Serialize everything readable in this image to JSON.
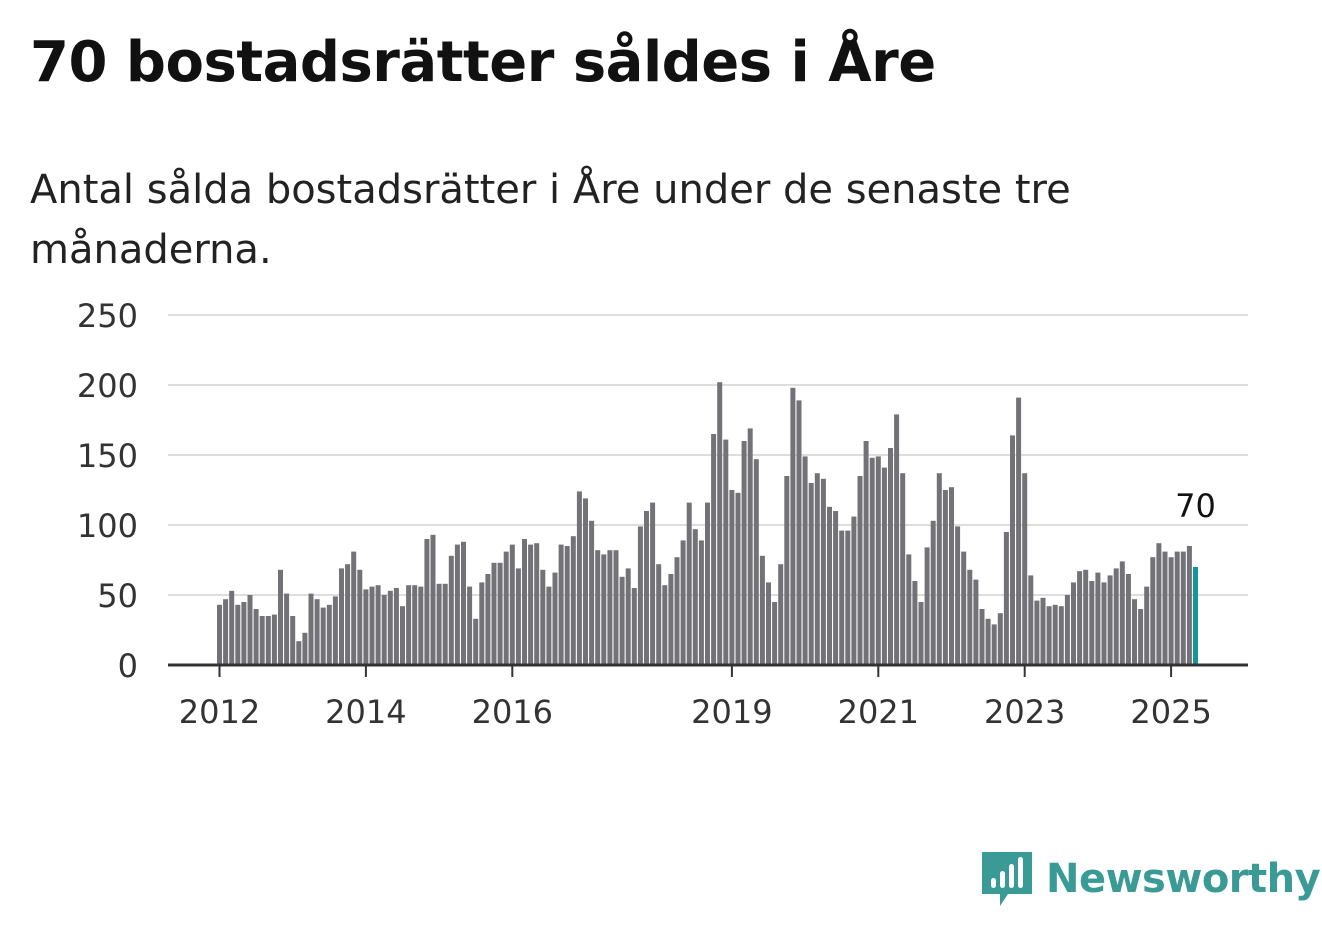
{
  "header": {
    "title": "70 bostadsrätter såldes i Åre",
    "subtitle": "Antal sålda bostadsrätter i Åre under de senaste tre månaderna."
  },
  "brand": {
    "name": "Newsworthy",
    "color": "#3a9a96"
  },
  "colors": {
    "bar": "#737277",
    "highlight": "#12959b",
    "grid": "#dddddd",
    "axis": "#333333"
  },
  "chart_data": {
    "type": "bar",
    "title": "",
    "xlabel": "",
    "ylabel": "",
    "ylim": [
      0,
      250
    ],
    "yticks": [
      0,
      50,
      100,
      150,
      200,
      250
    ],
    "xtick_labels": [
      "2012",
      "2014",
      "2016",
      "2019",
      "2021",
      "2023",
      "2025"
    ],
    "grid": true,
    "start": "2012-01",
    "frequency": "monthly",
    "values": [
      43,
      47,
      53,
      43,
      45,
      50,
      40,
      35,
      35,
      36,
      68,
      51,
      35,
      17,
      23,
      51,
      47,
      41,
      43,
      49,
      69,
      72,
      81,
      68,
      54,
      56,
      57,
      50,
      53,
      55,
      42,
      57,
      57,
      56,
      90,
      93,
      58,
      58,
      78,
      86,
      88,
      56,
      33,
      59,
      65,
      73,
      73,
      81,
      86,
      69,
      90,
      86,
      87,
      68,
      56,
      66,
      86,
      85,
      92,
      124,
      119,
      103,
      82,
      79,
      82,
      82,
      63,
      69,
      55,
      99,
      110,
      116,
      72,
      57,
      65,
      77,
      89,
      116,
      97,
      89,
      116,
      165,
      202,
      161,
      125,
      123,
      160,
      169,
      147,
      78,
      59,
      45,
      72,
      135,
      198,
      189,
      149,
      130,
      137,
      133,
      113,
      110,
      96,
      96,
      106,
      135,
      160,
      148,
      149,
      141,
      155,
      179,
      137,
      79,
      60,
      45,
      84,
      103,
      137,
      125,
      127,
      99,
      81,
      68,
      61,
      40,
      33,
      29,
      37,
      95,
      164,
      191,
      137,
      64,
      46,
      48,
      42,
      43,
      42,
      50,
      59,
      67,
      68,
      60,
      66,
      59,
      64,
      69,
      74,
      65,
      47,
      40,
      56,
      77,
      87,
      81,
      77,
      81,
      81,
      85,
      70
    ],
    "highlight_label": "70"
  }
}
